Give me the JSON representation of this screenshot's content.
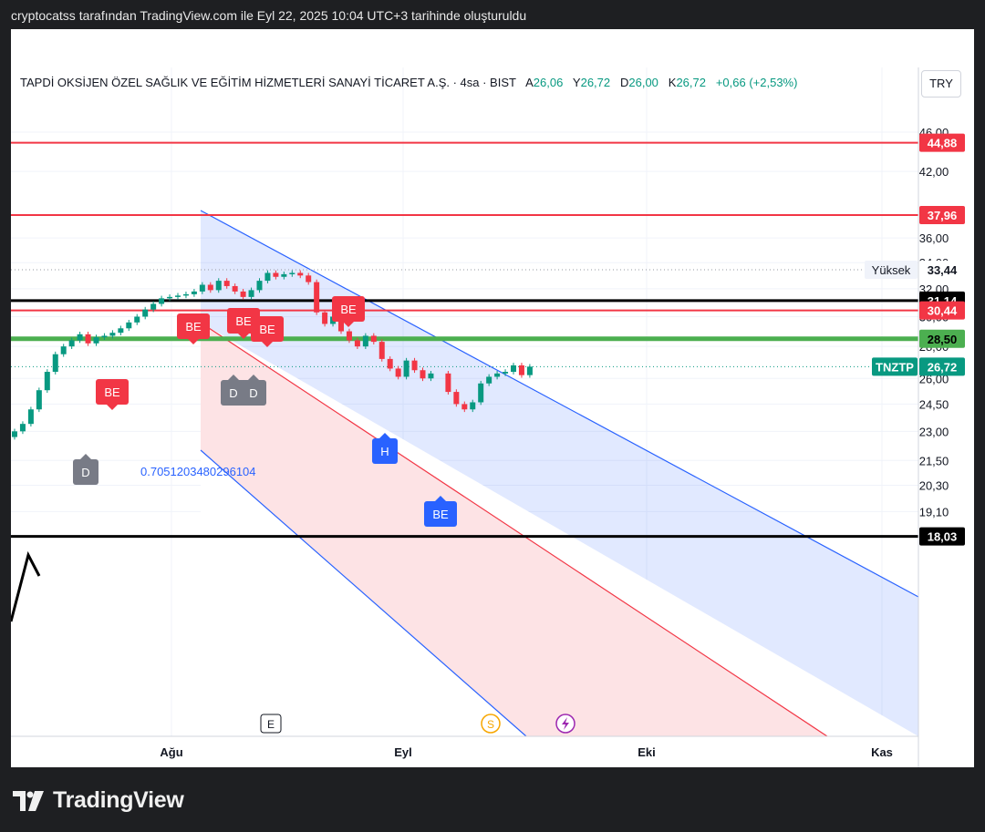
{
  "topbar": {
    "text": "cryptocatss tarafından TradingView.com ile Eyl 22, 2025 10:04 UTC+3 tarihinde oluşturuldu"
  },
  "header": {
    "name": "TAPDİ OKSİJEN ÖZEL SAĞLIK VE EĞİTİM HİZMETLERİ SANAYİ TİCARET A.Ş. · 4sa · BIST",
    "open_label": "A",
    "open_value": "26,06",
    "high_label": "Y",
    "high_value": "26,72",
    "low_label": "D",
    "low_value": "26,00",
    "close_label": "K",
    "close_value": "26,72",
    "change": "+0,66 (+2,53%)"
  },
  "currency": "TRY",
  "footer": {
    "logo_text": "TradingView"
  },
  "colors": {
    "up": "#089981",
    "down": "#f23645",
    "resistance": "#f23645",
    "support_black": "#000000",
    "green_line": "#4caf50",
    "channel_blue": "#2962ff",
    "fib_text": "#2962ff"
  },
  "chart_data": {
    "type": "candlestick",
    "symbol": "TNZTP",
    "timeframe": "4sa",
    "price_scale": "log",
    "y_ticks": [
      "46,00",
      "42,00",
      "36,00",
      "34,00",
      "32,00",
      "30,00",
      "28,00",
      "26,00",
      "24,50",
      "23,00",
      "21,50",
      "20,30",
      "19,10"
    ],
    "x_ticks": [
      "Ağu",
      "Eyl",
      "Eki",
      "Kas"
    ],
    "last_price": "26,72",
    "price_tags": [
      {
        "value": "44,88",
        "role": "resistance"
      },
      {
        "value": "37,96",
        "role": "resistance"
      },
      {
        "value": "33,44",
        "label": "Yüksek",
        "role": "high"
      },
      {
        "value": "31,14",
        "role": "black-line"
      },
      {
        "value": "30,44",
        "role": "resistance"
      },
      {
        "value": "28,50",
        "role": "green-line"
      },
      {
        "value": "26,72",
        "label": "TNZTP",
        "role": "last"
      },
      {
        "value": "18,03",
        "role": "black-line"
      }
    ],
    "annotations": [
      "0.7051203480296104"
    ],
    "signal_labels": [
      {
        "text": "BE",
        "type": "sell"
      },
      {
        "text": "BE",
        "type": "sell"
      },
      {
        "text": "BE",
        "type": "sell"
      },
      {
        "text": "BE",
        "type": "sell"
      },
      {
        "text": "BE",
        "type": "sell"
      },
      {
        "text": "D",
        "type": "neutral"
      },
      {
        "text": "D",
        "type": "neutral"
      },
      {
        "text": "D",
        "type": "neutral"
      },
      {
        "text": "H",
        "type": "buy"
      },
      {
        "text": "BE",
        "type": "buy"
      }
    ],
    "events": [
      "E",
      "S"
    ],
    "channel": "descending regression channel",
    "closes_approx": [
      23.0,
      23.4,
      24.2,
      25.3,
      26.4,
      27.5,
      28.0,
      28.4,
      28.8,
      28.2,
      28.6,
      28.7,
      28.9,
      29.2,
      29.6,
      30.0,
      30.5,
      30.9,
      31.3,
      31.4,
      31.5,
      31.6,
      31.8,
      32.3,
      31.9,
      32.6,
      32.2,
      31.8,
      31.4,
      31.9,
      32.6,
      33.2,
      32.9,
      33.1,
      33.2,
      33.0,
      32.5,
      30.3,
      29.5,
      30.0,
      29.0,
      28.4,
      28.0,
      28.7,
      28.3,
      27.2,
      26.6,
      26.1,
      27.1,
      26.5,
      26.0,
      26.3,
      25.2,
      24.5,
      24.2,
      24.6,
      25.7,
      26.1,
      26.3,
      26.4,
      26.8,
      26.2,
      26.72
    ]
  }
}
